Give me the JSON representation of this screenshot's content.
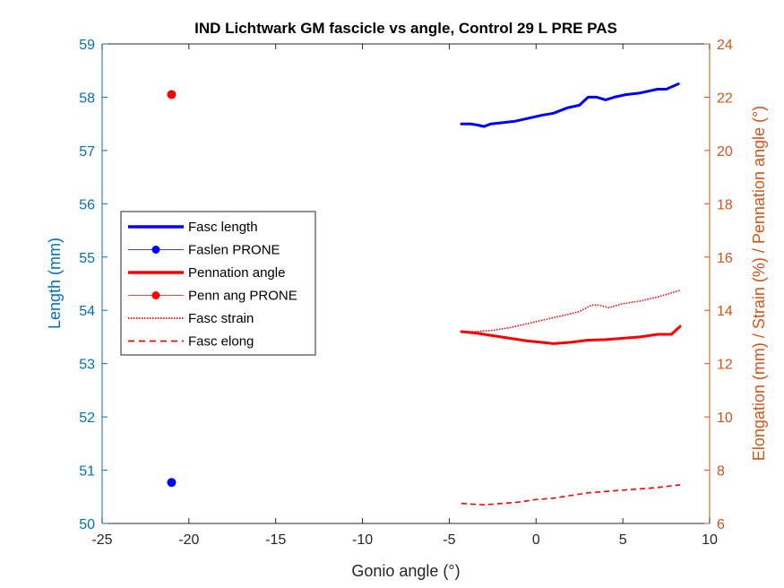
{
  "chart_data": {
    "type": "line",
    "title": "IND Lichtwark GM fascicle vs angle, Control 29 L PRE PAS",
    "xlabel": "Gonio angle (°)",
    "ylabel_left": "Length (mm)",
    "ylabel_right": "Elongation (mm) / Strain (%) / Pennation angle (°)",
    "xlim": [
      -25,
      10
    ],
    "ylim_left": [
      50,
      59
    ],
    "ylim_right": [
      6,
      24
    ],
    "xticks": [
      "-25",
      "-20",
      "-15",
      "-10",
      "-5",
      "0",
      "5",
      "10"
    ],
    "yticks_left": [
      "50",
      "51",
      "52",
      "53",
      "54",
      "55",
      "56",
      "57",
      "58",
      "59"
    ],
    "yticks_right": [
      "6",
      "8",
      "10",
      "12",
      "14",
      "16",
      "18",
      "20",
      "22",
      "24"
    ],
    "grid": false,
    "legend_position": "left",
    "legend": [
      {
        "label": "Fasc length",
        "style": "thick-solid",
        "color": "#0000FF"
      },
      {
        "label": "Faslen PRONE",
        "style": "marker",
        "color": "#0000FF"
      },
      {
        "label": "Pennation angle",
        "style": "thick-solid",
        "color": "#FF0000"
      },
      {
        "label": "Penn ang PRONE",
        "style": "marker",
        "color": "#FF0000"
      },
      {
        "label": "Fasc strain",
        "style": "dotted",
        "color": "#FF0000"
      },
      {
        "label": "Fasc elong",
        "style": "dashed",
        "color": "#FF0000"
      }
    ],
    "series": [
      {
        "name": "Fasc length",
        "axis": "left",
        "color": "#0000FF",
        "x": [
          -4.3,
          -3.8,
          -3.4,
          -3.0,
          -2.6,
          -2.0,
          -1.2,
          -0.5,
          0.3,
          1.0,
          1.8,
          2.5,
          3.0,
          3.5,
          4.0,
          4.5,
          5.2,
          6.0,
          7.0,
          7.5,
          8.2
        ],
        "y": [
          57.5,
          57.5,
          57.48,
          57.45,
          57.5,
          57.52,
          57.55,
          57.6,
          57.66,
          57.7,
          57.8,
          57.85,
          58.0,
          58.0,
          57.95,
          58.0,
          58.05,
          58.08,
          58.15,
          58.15,
          58.25
        ]
      },
      {
        "name": "Faslen PRONE",
        "axis": "left",
        "color": "#0000FF",
        "x": [
          -21.0
        ],
        "y": [
          50.77
        ]
      },
      {
        "name": "Pennation angle",
        "axis": "right",
        "color": "#FF0000",
        "x": [
          -4.3,
          -3.5,
          -2.5,
          -1.5,
          -0.5,
          0.3,
          1.0,
          2.0,
          3.0,
          4.0,
          5.0,
          6.0,
          7.0,
          7.8,
          8.3
        ],
        "y": [
          13.2,
          13.15,
          13.05,
          12.95,
          12.85,
          12.8,
          12.75,
          12.8,
          12.88,
          12.9,
          12.95,
          13.0,
          13.1,
          13.1,
          13.4
        ]
      },
      {
        "name": "Penn ang PRONE",
        "axis": "right",
        "color": "#FF0000",
        "x": [
          -21.0
        ],
        "y": [
          22.1
        ]
      },
      {
        "name": "Fasc strain",
        "axis": "right",
        "color": "#FF0000",
        "x": [
          -4.3,
          -3.5,
          -2.5,
          -1.5,
          -0.5,
          0.5,
          1.5,
          2.5,
          3.2,
          3.6,
          4.2,
          5.0,
          6.0,
          7.0,
          8.3
        ],
        "y": [
          13.2,
          13.2,
          13.25,
          13.35,
          13.5,
          13.65,
          13.8,
          13.95,
          14.2,
          14.2,
          14.1,
          14.25,
          14.35,
          14.5,
          14.75
        ]
      },
      {
        "name": "Fasc elong",
        "axis": "right",
        "color": "#FF0000",
        "x": [
          -4.3,
          -3.0,
          -2.0,
          -1.0,
          0.0,
          1.0,
          2.0,
          3.0,
          4.0,
          5.0,
          6.0,
          7.0,
          8.3
        ],
        "y": [
          6.75,
          6.7,
          6.75,
          6.8,
          6.9,
          6.95,
          7.05,
          7.15,
          7.2,
          7.25,
          7.3,
          7.35,
          7.45
        ]
      }
    ]
  }
}
